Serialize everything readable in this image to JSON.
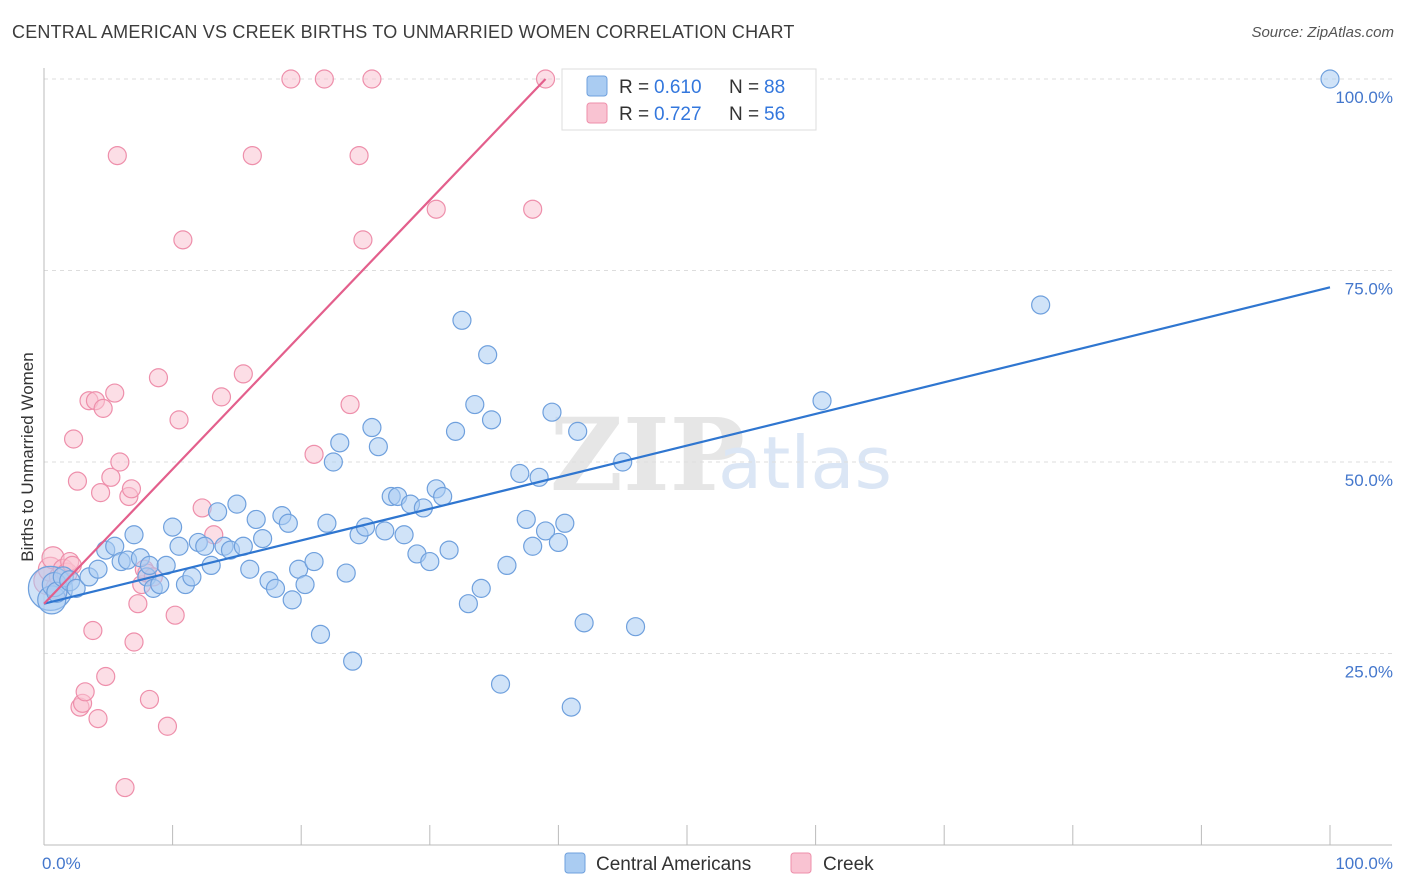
{
  "title": "CENTRAL AMERICAN VS CREEK BIRTHS TO UNMARRIED WOMEN CORRELATION CHART",
  "source": "Source: ZipAtlas.com",
  "watermark": {
    "zip": "ZIP",
    "atlas": "atlas"
  },
  "colors": {
    "blue_fill": "#aaccf2",
    "blue_stroke": "#6fa0dd",
    "blue_line": "#2f76d0",
    "pink_fill": "#f9c3d2",
    "pink_stroke": "#ee8fab",
    "pink_line": "#e35f8c",
    "axis_text": "#4477cc",
    "grid": "#dddddd"
  },
  "legend": {
    "r_label": "R =",
    "n_label": "N =",
    "series": [
      {
        "r": "0.610",
        "n": "88"
      },
      {
        "r": "0.727",
        "n": "56"
      }
    ]
  },
  "bottom_legend": [
    "Central Americans",
    "Creek"
  ],
  "chart_data": {
    "type": "scatter",
    "xlabel": "",
    "ylabel": "Births to Unmarried Women",
    "xlim": [
      0,
      100
    ],
    "ylim": [
      0,
      100
    ],
    "x_tick_labels": [
      "0.0%",
      "100.0%"
    ],
    "y_ticks": [
      25,
      50,
      75,
      100
    ],
    "y_tick_labels": [
      "25.0%",
      "50.0%",
      "75.0%",
      "100.0%"
    ],
    "grid": true,
    "legend_position": "top-center",
    "series": [
      {
        "name": "Central Americans",
        "color": "blue",
        "trend": {
          "x": [
            0,
            100
          ],
          "y": [
            31.5,
            72.8
          ]
        },
        "points": [
          {
            "x": 0.5,
            "y": 33.5,
            "s": 22
          },
          {
            "x": 0.6,
            "y": 32.0,
            "s": 14
          },
          {
            "x": 0.8,
            "y": 34.0,
            "s": 12
          },
          {
            "x": 1.0,
            "y": 33.0,
            "s": 10
          },
          {
            "x": 1.5,
            "y": 35.0,
            "s": 10
          },
          {
            "x": 2.0,
            "y": 34.5,
            "s": 10
          },
          {
            "x": 2.5,
            "y": 33.5,
            "s": 9
          },
          {
            "x": 3.5,
            "y": 35.0,
            "s": 9
          },
          {
            "x": 4.2,
            "y": 36.0,
            "s": 9
          },
          {
            "x": 4.8,
            "y": 38.5,
            "s": 9
          },
          {
            "x": 5.5,
            "y": 39.0,
            "s": 9
          },
          {
            "x": 6.0,
            "y": 37.0,
            "s": 9
          },
          {
            "x": 6.5,
            "y": 37.2,
            "s": 9
          },
          {
            "x": 7.0,
            "y": 40.5,
            "s": 9
          },
          {
            "x": 7.5,
            "y": 37.5,
            "s": 9
          },
          {
            "x": 8.0,
            "y": 35.0,
            "s": 9
          },
          {
            "x": 8.2,
            "y": 36.5,
            "s": 9
          },
          {
            "x": 8.5,
            "y": 33.5,
            "s": 9
          },
          {
            "x": 9.0,
            "y": 34.0,
            "s": 9
          },
          {
            "x": 9.5,
            "y": 36.5,
            "s": 9
          },
          {
            "x": 10.0,
            "y": 41.5,
            "s": 9
          },
          {
            "x": 10.5,
            "y": 39.0,
            "s": 9
          },
          {
            "x": 11.0,
            "y": 34.0,
            "s": 9
          },
          {
            "x": 11.5,
            "y": 35.0,
            "s": 9
          },
          {
            "x": 12.0,
            "y": 39.5,
            "s": 9
          },
          {
            "x": 12.5,
            "y": 39.0,
            "s": 9
          },
          {
            "x": 13.0,
            "y": 36.5,
            "s": 9
          },
          {
            "x": 13.5,
            "y": 43.5,
            "s": 9
          },
          {
            "x": 14.0,
            "y": 39.0,
            "s": 9
          },
          {
            "x": 14.5,
            "y": 38.5,
            "s": 9
          },
          {
            "x": 15.0,
            "y": 44.5,
            "s": 9
          },
          {
            "x": 15.5,
            "y": 39.0,
            "s": 9
          },
          {
            "x": 16.0,
            "y": 36.0,
            "s": 9
          },
          {
            "x": 16.5,
            "y": 42.5,
            "s": 9
          },
          {
            "x": 17.0,
            "y": 40.0,
            "s": 9
          },
          {
            "x": 17.5,
            "y": 34.5,
            "s": 9
          },
          {
            "x": 18.0,
            "y": 33.5,
            "s": 9
          },
          {
            "x": 18.5,
            "y": 43.0,
            "s": 9
          },
          {
            "x": 19.0,
            "y": 42.0,
            "s": 9
          },
          {
            "x": 19.3,
            "y": 32.0,
            "s": 9
          },
          {
            "x": 19.8,
            "y": 36.0,
            "s": 9
          },
          {
            "x": 20.3,
            "y": 34.0,
            "s": 9
          },
          {
            "x": 21.0,
            "y": 37.0,
            "s": 9
          },
          {
            "x": 21.5,
            "y": 27.5,
            "s": 9
          },
          {
            "x": 22.0,
            "y": 42.0,
            "s": 9
          },
          {
            "x": 22.5,
            "y": 50.0,
            "s": 9
          },
          {
            "x": 23.0,
            "y": 52.5,
            "s": 9
          },
          {
            "x": 23.5,
            "y": 35.5,
            "s": 9
          },
          {
            "x": 24.0,
            "y": 24.0,
            "s": 9
          },
          {
            "x": 24.5,
            "y": 40.5,
            "s": 9
          },
          {
            "x": 25.0,
            "y": 41.5,
            "s": 9
          },
          {
            "x": 25.5,
            "y": 54.5,
            "s": 9
          },
          {
            "x": 26.0,
            "y": 52.0,
            "s": 9
          },
          {
            "x": 26.5,
            "y": 41.0,
            "s": 9
          },
          {
            "x": 27.0,
            "y": 45.5,
            "s": 9
          },
          {
            "x": 27.5,
            "y": 45.5,
            "s": 9
          },
          {
            "x": 28.0,
            "y": 40.5,
            "s": 9
          },
          {
            "x": 28.5,
            "y": 44.5,
            "s": 9
          },
          {
            "x": 29.0,
            "y": 38.0,
            "s": 9
          },
          {
            "x": 29.5,
            "y": 44.0,
            "s": 9
          },
          {
            "x": 30.0,
            "y": 37.0,
            "s": 9
          },
          {
            "x": 30.5,
            "y": 46.5,
            "s": 9
          },
          {
            "x": 31.0,
            "y": 45.5,
            "s": 9
          },
          {
            "x": 31.5,
            "y": 38.5,
            "s": 9
          },
          {
            "x": 32.0,
            "y": 54.0,
            "s": 9
          },
          {
            "x": 32.5,
            "y": 68.5,
            "s": 9
          },
          {
            "x": 33.0,
            "y": 31.5,
            "s": 9
          },
          {
            "x": 33.5,
            "y": 57.5,
            "s": 9
          },
          {
            "x": 34.0,
            "y": 33.5,
            "s": 9
          },
          {
            "x": 34.5,
            "y": 64.0,
            "s": 9
          },
          {
            "x": 34.8,
            "y": 55.5,
            "s": 9
          },
          {
            "x": 35.5,
            "y": 21.0,
            "s": 9
          },
          {
            "x": 36.0,
            "y": 36.5,
            "s": 9
          },
          {
            "x": 37.0,
            "y": 48.5,
            "s": 9
          },
          {
            "x": 37.5,
            "y": 42.5,
            "s": 9
          },
          {
            "x": 38.0,
            "y": 39.0,
            "s": 9
          },
          {
            "x": 38.5,
            "y": 48.0,
            "s": 9
          },
          {
            "x": 39.0,
            "y": 41.0,
            "s": 9
          },
          {
            "x": 39.5,
            "y": 56.5,
            "s": 9
          },
          {
            "x": 40.0,
            "y": 39.5,
            "s": 9
          },
          {
            "x": 40.5,
            "y": 42.0,
            "s": 9
          },
          {
            "x": 41.0,
            "y": 18.0,
            "s": 9
          },
          {
            "x": 41.5,
            "y": 54.0,
            "s": 9
          },
          {
            "x": 42.0,
            "y": 29.0,
            "s": 9
          },
          {
            "x": 45.0,
            "y": 50.0,
            "s": 9
          },
          {
            "x": 46.0,
            "y": 28.5,
            "s": 9
          },
          {
            "x": 60.5,
            "y": 58.0,
            "s": 9
          },
          {
            "x": 77.5,
            "y": 70.5,
            "s": 9
          },
          {
            "x": 100.0,
            "y": 100.0,
            "s": 9
          }
        ]
      },
      {
        "name": "Creek",
        "color": "pink",
        "trend": {
          "x": [
            0,
            39
          ],
          "y": [
            31.5,
            100
          ]
        },
        "points": [
          {
            "x": 0.3,
            "y": 34.5,
            "s": 14
          },
          {
            "x": 0.5,
            "y": 36.0,
            "s": 12
          },
          {
            "x": 0.7,
            "y": 37.5,
            "s": 11
          },
          {
            "x": 1.0,
            "y": 33.5,
            "s": 11
          },
          {
            "x": 1.2,
            "y": 35.0,
            "s": 10
          },
          {
            "x": 1.5,
            "y": 36.0,
            "s": 10
          },
          {
            "x": 1.8,
            "y": 35.5,
            "s": 10
          },
          {
            "x": 2.0,
            "y": 37.0,
            "s": 9
          },
          {
            "x": 2.2,
            "y": 36.5,
            "s": 9
          },
          {
            "x": 2.3,
            "y": 53.0,
            "s": 9
          },
          {
            "x": 2.6,
            "y": 47.5,
            "s": 9
          },
          {
            "x": 2.8,
            "y": 18.0,
            "s": 9
          },
          {
            "x": 3.0,
            "y": 18.5,
            "s": 9
          },
          {
            "x": 3.2,
            "y": 20.0,
            "s": 9
          },
          {
            "x": 3.5,
            "y": 58.0,
            "s": 9
          },
          {
            "x": 3.8,
            "y": 28.0,
            "s": 9
          },
          {
            "x": 4.0,
            "y": 58.0,
            "s": 9
          },
          {
            "x": 4.2,
            "y": 16.5,
            "s": 9
          },
          {
            "x": 4.4,
            "y": 46.0,
            "s": 9
          },
          {
            "x": 4.6,
            "y": 57.0,
            "s": 9
          },
          {
            "x": 4.8,
            "y": 22.0,
            "s": 9
          },
          {
            "x": 5.2,
            "y": 48.0,
            "s": 9
          },
          {
            "x": 5.5,
            "y": 59.0,
            "s": 9
          },
          {
            "x": 5.7,
            "y": 90.0,
            "s": 9
          },
          {
            "x": 5.9,
            "y": 50.0,
            "s": 9
          },
          {
            "x": 6.3,
            "y": 7.5,
            "s": 9
          },
          {
            "x": 6.6,
            "y": 45.5,
            "s": 9
          },
          {
            "x": 6.8,
            "y": 46.5,
            "s": 9
          },
          {
            "x": 7.0,
            "y": 26.5,
            "s": 9
          },
          {
            "x": 7.3,
            "y": 31.5,
            "s": 9
          },
          {
            "x": 7.6,
            "y": 34.0,
            "s": 9
          },
          {
            "x": 7.8,
            "y": 36.0,
            "s": 9
          },
          {
            "x": 8.0,
            "y": 35.5,
            "s": 9
          },
          {
            "x": 8.2,
            "y": 19.0,
            "s": 9
          },
          {
            "x": 8.5,
            "y": 35.0,
            "s": 9
          },
          {
            "x": 8.9,
            "y": 61.0,
            "s": 9
          },
          {
            "x": 9.6,
            "y": 15.5,
            "s": 9
          },
          {
            "x": 10.2,
            "y": 30.0,
            "s": 9
          },
          {
            "x": 10.5,
            "y": 55.5,
            "s": 9
          },
          {
            "x": 10.8,
            "y": 79.0,
            "s": 9
          },
          {
            "x": 12.3,
            "y": 44.0,
            "s": 9
          },
          {
            "x": 13.2,
            "y": 40.5,
            "s": 9
          },
          {
            "x": 13.8,
            "y": 58.5,
            "s": 9
          },
          {
            "x": 15.5,
            "y": 61.5,
            "s": 9
          },
          {
            "x": 16.2,
            "y": 90.0,
            "s": 9
          },
          {
            "x": 19.2,
            "y": 100.0,
            "s": 9
          },
          {
            "x": 21.0,
            "y": 51.0,
            "s": 9
          },
          {
            "x": 21.8,
            "y": 100.0,
            "s": 9
          },
          {
            "x": 23.8,
            "y": 57.5,
            "s": 9
          },
          {
            "x": 24.5,
            "y": 90.0,
            "s": 9
          },
          {
            "x": 24.8,
            "y": 79.0,
            "s": 9
          },
          {
            "x": 25.5,
            "y": 100.0,
            "s": 9
          },
          {
            "x": 30.5,
            "y": 83.0,
            "s": 9
          },
          {
            "x": 38.0,
            "y": 83.0,
            "s": 9
          },
          {
            "x": 39.0,
            "y": 100.0,
            "s": 9
          }
        ]
      }
    ]
  }
}
